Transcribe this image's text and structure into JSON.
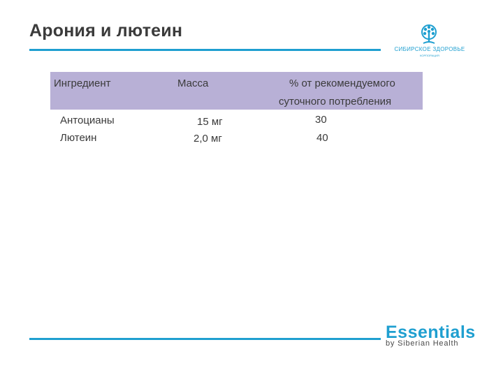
{
  "slide": {
    "title": "Арония и лютеин"
  },
  "brand": {
    "name": "СИБИРСКОЕ ЗДОРОВЬЕ",
    "subtitle": "КОРПОРАЦИЯ",
    "icon": "tree-icon",
    "color": "#1f9fd0"
  },
  "table": {
    "header_color": "#b8b0d6",
    "headers": {
      "ingredient": "Ингредиент",
      "mass": "Масса",
      "percent_line1": "% от рекомендуемого",
      "percent_line2": "суточного  потребления"
    },
    "rows": [
      {
        "ingredient": "Антоцианы",
        "mass": "15 мг",
        "percent": "30"
      },
      {
        "ingredient": "Лютеин",
        "mass": "2,0 мг",
        "percent": "40"
      }
    ]
  },
  "footer": {
    "brand": "Essentials",
    "sub": "by Siberian Health"
  }
}
